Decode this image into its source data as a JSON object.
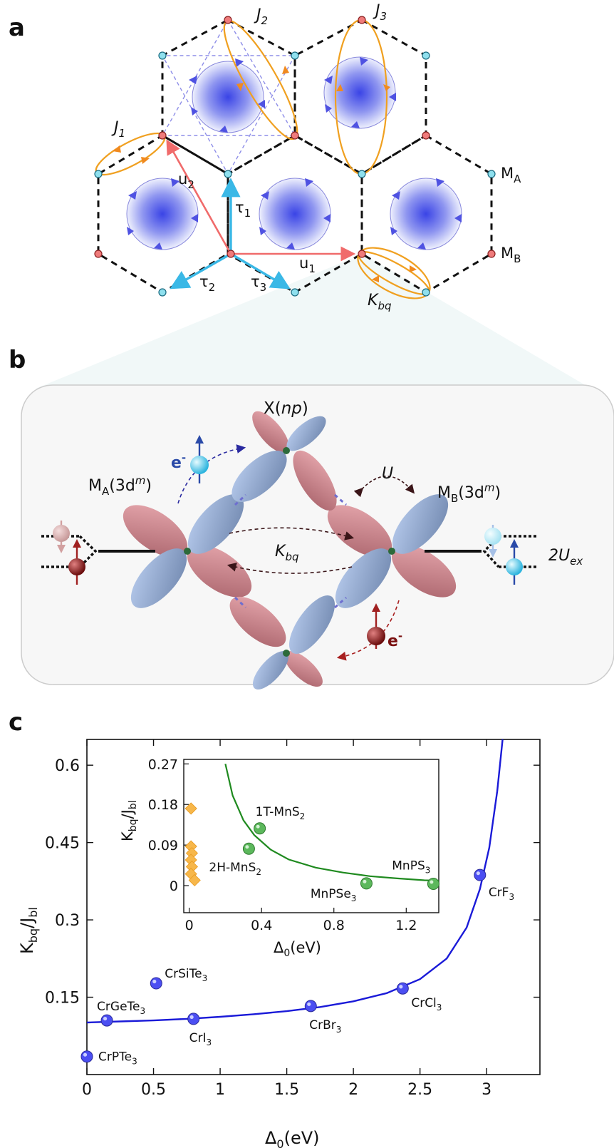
{
  "panels": {
    "a": "a",
    "b": "b",
    "c": "c"
  },
  "panel_a": {
    "J1": "J",
    "J1_sub": "1",
    "J2": "J",
    "J2_sub": "2",
    "J3": "J",
    "J3_sub": "3",
    "Kbq": "K",
    "Kbq_sub": "bq",
    "MA": "M",
    "MA_sub": "A",
    "MB": "M",
    "MB_sub": "B",
    "u1": "u",
    "u1_sub": "1",
    "u2": "u",
    "u2_sub": "2",
    "tau1": "τ",
    "tau1_sub": "1",
    "tau2": "τ",
    "tau2_sub": "2",
    "tau3": "τ",
    "tau3_sub": "3",
    "colors": {
      "red_site": "#ef7b7b",
      "cyan_site": "#8fe0ee",
      "u_vector": "#f06b6b",
      "tau_vector": "#3ab8e6",
      "exchange": "#f0a020",
      "vortex": "#5560e8"
    }
  },
  "panel_b": {
    "X_label": "X(",
    "X_np": "np",
    "X_close": ")",
    "MA_label": "M",
    "MA_sub": "A",
    "MA_tail": "(3d",
    "MA_sup": "m",
    "MA_close": ")",
    "MB_label": "M",
    "MB_sub": "B",
    "MB_tail": "(3d",
    "MB_sup": "m",
    "MB_close": ")",
    "U": "U",
    "Kbq": "K",
    "Kbq_sub": "bq",
    "electron_top": "e",
    "electron_top_sup": "-",
    "electron_bottom": "e",
    "electron_bottom_sup": "-",
    "Uex": "2U",
    "Uex_sub": "ex",
    "colors": {
      "lobe_red": "#d08c90",
      "lobe_blue": "#9ab2d8",
      "electron_cyan": "#5ccfee",
      "electron_red": "#a02020"
    }
  },
  "panel_c": {
    "ylabel": "K",
    "ylabel_sub": "bq",
    "ylabel_mid": "/J",
    "ylabel_sub2": "bl",
    "xlabel": "Δ",
    "xlabel_sub": "0",
    "xlabel_unit": "(eV)",
    "inset_ylabel": "K",
    "inset_ylabel_sub": "bq",
    "inset_ylabel_mid": "/J",
    "inset_ylabel_sub2": "bl",
    "inset_xlabel": "Δ",
    "inset_xlabel_sub": "0",
    "inset_xlabel_unit": "(eV)"
  },
  "chart_data": [
    {
      "type": "scatter",
      "name_id": "main",
      "xlim": [
        0,
        3.4
      ],
      "ylim": [
        0,
        0.65
      ],
      "xticks": [
        "0",
        "0.5",
        "1",
        "1.5",
        "2",
        "2.5",
        "3"
      ],
      "xtick_values": [
        0,
        0.5,
        1,
        1.5,
        2,
        2.5,
        3
      ],
      "yticks": [
        "0.15",
        "0.3",
        "0.45",
        "0.6"
      ],
      "ytick_values": [
        0.15,
        0.3,
        0.45,
        0.6
      ],
      "points": [
        {
          "label": "CrPTe",
          "sub": "3",
          "x": 0.0,
          "y": 0.035
        },
        {
          "label": "CrGeTe",
          "sub": "3",
          "x": 0.15,
          "y": 0.105
        },
        {
          "label": "CrSiTe",
          "sub": "3",
          "x": 0.52,
          "y": 0.177
        },
        {
          "label": "CrI",
          "sub": "3",
          "x": 0.8,
          "y": 0.108
        },
        {
          "label": "CrBr",
          "sub": "3",
          "x": 1.68,
          "y": 0.133
        },
        {
          "label": "CrCl",
          "sub": "3",
          "x": 2.37,
          "y": 0.167
        },
        {
          "label": "CrF",
          "sub": "3",
          "x": 2.95,
          "y": 0.387
        }
      ],
      "curve": {
        "x": [
          0,
          0.25,
          0.5,
          0.75,
          1.0,
          1.25,
          1.5,
          1.75,
          2.0,
          2.25,
          2.5,
          2.7,
          2.85,
          2.95,
          3.02,
          3.08,
          3.12
        ],
        "y": [
          0.101,
          0.103,
          0.105,
          0.108,
          0.112,
          0.117,
          0.123,
          0.131,
          0.142,
          0.158,
          0.185,
          0.225,
          0.285,
          0.36,
          0.44,
          0.55,
          0.65
        ]
      },
      "colors": {
        "points": "#4b4ef2",
        "curve": "#1a1ad8"
      }
    },
    {
      "type": "scatter",
      "name_id": "inset",
      "xlim": [
        -0.03,
        1.38
      ],
      "ylim": [
        -0.06,
        0.28
      ],
      "xticks": [
        "0",
        "0.4",
        "0.8",
        "1.2"
      ],
      "xtick_values": [
        0,
        0.4,
        0.8,
        1.2
      ],
      "yticks": [
        "0",
        "0.09",
        "0.18",
        "0.27"
      ],
      "ytick_values": [
        0,
        0.09,
        0.18,
        0.27
      ],
      "green_points": [
        {
          "label": "2H-MnS",
          "sub": "2",
          "x": 0.33,
          "y": 0.082
        },
        {
          "label": "1T-MnS",
          "sub": "2",
          "x": 0.39,
          "y": 0.127
        },
        {
          "label": "MnPSe",
          "sub": "3",
          "x": 0.98,
          "y": 0.005
        },
        {
          "label": "MnPS",
          "sub": "3",
          "x": 1.35,
          "y": 0.004
        }
      ],
      "orange_points": [
        {
          "x": 0.01,
          "y": 0.171
        },
        {
          "x": 0.01,
          "y": 0.087
        },
        {
          "x": 0.015,
          "y": 0.072
        },
        {
          "x": 0.01,
          "y": 0.057
        },
        {
          "x": 0.015,
          "y": 0.042
        },
        {
          "x": 0.01,
          "y": 0.026
        },
        {
          "x": 0.03,
          "y": 0.012
        }
      ],
      "curve": {
        "x": [
          0.2,
          0.24,
          0.3,
          0.36,
          0.45,
          0.55,
          0.7,
          0.85,
          1.0,
          1.15,
          1.3,
          1.38
        ],
        "y": [
          0.27,
          0.2,
          0.145,
          0.112,
          0.08,
          0.058,
          0.04,
          0.029,
          0.021,
          0.016,
          0.012,
          0.011
        ]
      },
      "colors": {
        "green": "#5cb85c",
        "orange": "#f7b74a",
        "curve": "#1f8a1f"
      }
    }
  ]
}
